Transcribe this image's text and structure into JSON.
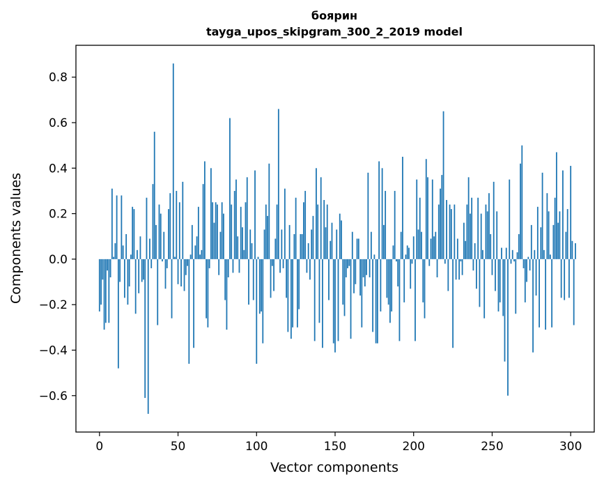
{
  "chart_data": {
    "type": "bar",
    "title_line1": "боярин",
    "title_line2": "tayga_upos_skipgram_300_2_2019 model",
    "xlabel": "Vector components",
    "ylabel": "Components values",
    "xlim": [
      -15,
      315
    ],
    "ylim": [
      -0.76,
      0.94
    ],
    "x_ticks": [
      0,
      50,
      100,
      150,
      200,
      250,
      300
    ],
    "x_tick_labels": [
      "0",
      "50",
      "100",
      "150",
      "200",
      "250",
      "300"
    ],
    "y_ticks": [
      -0.6,
      -0.4,
      -0.2,
      0.0,
      0.2,
      0.4,
      0.6,
      0.8
    ],
    "y_tick_labels": [
      "−0.6",
      "−0.4",
      "−0.2",
      "0.0",
      "0.2",
      "0.4",
      "0.6",
      "0.8"
    ],
    "bar_color": "#1f77b4",
    "values": [
      -0.23,
      -0.2,
      -0.09,
      -0.31,
      -0.28,
      -0.05,
      -0.28,
      -0.08,
      0.31,
      0.01,
      0.07,
      0.28,
      -0.48,
      -0.1,
      0.28,
      0.06,
      -0.17,
      0.11,
      -0.2,
      -0.12,
      0.02,
      0.23,
      0.22,
      -0.24,
      0.04,
      -0.15,
      0.1,
      -0.1,
      -0.09,
      -0.61,
      0.27,
      -0.68,
      0.09,
      -0.04,
      0.33,
      0.56,
      0.15,
      -0.29,
      0.24,
      0.2,
      -0.01,
      0.12,
      -0.13,
      -0.04,
      0.22,
      0.29,
      -0.26,
      0.86,
      0.01,
      0.3,
      -0.11,
      0.25,
      -0.12,
      0.34,
      -0.14,
      -0.07,
      -0.03,
      -0.46,
      0.02,
      0.15,
      -0.39,
      0.06,
      0.1,
      0.23,
      0.02,
      0.04,
      0.33,
      0.43,
      -0.26,
      -0.3,
      -0.04,
      0.4,
      0.25,
      0.16,
      0.25,
      0.24,
      -0.07,
      0.12,
      0.25,
      0.2,
      -0.18,
      -0.31,
      -0.08,
      0.62,
      0.24,
      -0.06,
      0.3,
      0.35,
      0.1,
      -0.06,
      0.23,
      0.14,
      0.04,
      0.25,
      0.36,
      -0.2,
      0.13,
      0.07,
      -0.18,
      0.39,
      -0.46,
      0.01,
      -0.24,
      -0.23,
      -0.37,
      0.13,
      0.24,
      0.19,
      0.42,
      -0.17,
      -0.03,
      -0.14,
      0.09,
      0.24,
      0.66,
      -0.06,
      0.13,
      -0.04,
      0.31,
      -0.17,
      -0.32,
      0.15,
      -0.35,
      -0.3,
      0.11,
      0.27,
      -0.3,
      -0.22,
      0.11,
      0.11,
      0.25,
      0.3,
      -0.06,
      0.07,
      -0.09,
      0.13,
      0.19,
      -0.36,
      0.4,
      0.24,
      -0.28,
      0.36,
      -0.39,
      0.26,
      0.14,
      0.24,
      -0.18,
      0.08,
      0.16,
      -0.37,
      -0.41,
      0.13,
      -0.36,
      0.2,
      0.17,
      -0.2,
      -0.25,
      -0.08,
      -0.04,
      -0.03,
      -0.35,
      0.12,
      -0.15,
      -0.11,
      0.09,
      0.09,
      -0.16,
      -0.3,
      -0.08,
      -0.12,
      -0.07,
      0.38,
      -0.08,
      0.12,
      -0.32,
      0.02,
      -0.37,
      -0.37,
      0.43,
      -0.23,
      0.4,
      0.15,
      0.3,
      -0.17,
      -0.2,
      -0.28,
      -0.23,
      0.06,
      0.3,
      -0.01,
      -0.12,
      -0.36,
      0.12,
      0.45,
      -0.19,
      0.02,
      0.06,
      0.05,
      -0.13,
      -0.02,
      0.1,
      -0.36,
      0.35,
      0.13,
      0.27,
      0.12,
      -0.19,
      -0.26,
      0.44,
      0.36,
      -0.03,
      0.09,
      0.35,
      0.1,
      0.12,
      -0.08,
      0.24,
      0.31,
      0.37,
      0.65,
      -0.02,
      0.26,
      -0.14,
      0.24,
      0.22,
      -0.39,
      0.24,
      -0.09,
      0.09,
      -0.09,
      -0.01,
      -0.07,
      0.16,
      0.08,
      0.24,
      0.36,
      0.2,
      0.27,
      -0.05,
      0.07,
      -0.13,
      0.27,
      -0.21,
      0.2,
      0.04,
      -0.26,
      0.24,
      0.21,
      0.29,
      0.11,
      -0.07,
      0.34,
      -0.14,
      0.21,
      -0.23,
      -0.19,
      0.05,
      -0.25,
      -0.45,
      0.05,
      -0.6,
      0.35,
      -0.02,
      0.04,
      -0.01,
      -0.24,
      0.03,
      0.11,
      0.42,
      0.5,
      -0.04,
      -0.19,
      -0.1,
      0.01,
      -0.05,
      0.15,
      -0.41,
      0.04,
      -0.16,
      0.23,
      -0.3,
      0.14,
      0.38,
      0.04,
      -0.31,
      0.29,
      0.21,
      0.02,
      -0.3,
      0.15,
      0.27,
      0.47,
      0.16,
      0.21,
      -0.17,
      0.39,
      -0.18,
      0.12,
      0.22,
      -0.17,
      0.41,
      0.08,
      -0.29,
      0.07
    ]
  }
}
